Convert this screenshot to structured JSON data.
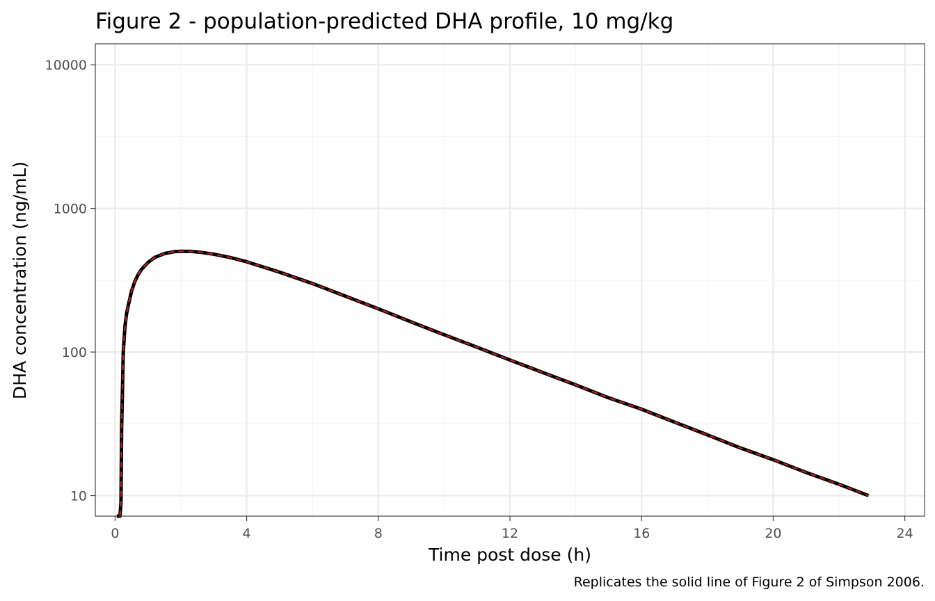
{
  "chart_data": {
    "type": "line",
    "title": "Figure 2 - population-predicted DHA profile, 10 mg/kg",
    "xlabel": "Time post dose (h)",
    "ylabel": "DHA concentration (ng/mL)",
    "caption": "Replicates the solid line of Figure 2 of Simpson 2006.",
    "x_scale": "linear",
    "y_scale": "log10",
    "xlim": [
      -0.6,
      24.6
    ],
    "ylim": [
      7.2,
      14000
    ],
    "x_ticks": [
      0,
      4,
      8,
      12,
      16,
      20,
      24
    ],
    "x_tick_labels": [
      "0",
      "4",
      "8",
      "12",
      "16",
      "20",
      "24"
    ],
    "y_ticks": [
      10,
      100,
      1000,
      10000
    ],
    "y_tick_labels": [
      "10",
      "100",
      "1000",
      "10000"
    ],
    "grid": true,
    "legend": "none",
    "colors": {
      "reference_line": "#000000",
      "model_line": "#b22222",
      "panel_border": "#333333",
      "grid_major": "#ebebeb",
      "grid_minor": "#f3f3f3"
    },
    "series": [
      {
        "style": "solid",
        "color": "#000000",
        "x": [
          0.05,
          0.15,
          0.18,
          0.2,
          0.25,
          0.3,
          0.35,
          0.4,
          0.5,
          0.6,
          0.7,
          0.8,
          1.0,
          1.2,
          1.5,
          1.8,
          2.0,
          2.3,
          2.6,
          3.0,
          3.5,
          4.0,
          5.0,
          6.0,
          7.0,
          8.0,
          9.0,
          10.0,
          11.0,
          12.0,
          13.0,
          14.0,
          15.0,
          16.0,
          17.0,
          18.0,
          19.0,
          20.0,
          21.0,
          22.0,
          22.9
        ],
        "y": [
          7.2,
          7.2,
          9,
          30,
          100,
          150,
          185,
          210,
          265,
          310,
          345,
          375,
          420,
          455,
          485,
          500,
          503,
          502,
          495,
          480,
          455,
          425,
          360,
          300,
          245,
          200,
          162,
          132,
          108,
          88,
          72,
          59,
          48,
          40,
          32.5,
          26.5,
          21.5,
          17.8,
          14.5,
          12,
          10
        ]
      },
      {
        "style": "dashed",
        "color": "#b22222",
        "x": [
          0.15,
          0.18,
          0.2,
          0.25,
          0.3,
          0.35,
          0.4,
          0.5,
          0.6,
          0.7,
          0.8,
          1.0,
          1.2,
          1.5,
          1.8,
          2.0,
          2.3,
          2.6,
          3.0,
          3.5,
          4.0,
          5.0,
          6.0,
          7.0,
          8.0,
          9.0,
          10.0,
          11.0,
          12.0,
          13.0,
          14.0,
          15.0,
          16.0,
          17.0,
          18.0,
          19.0,
          20.0,
          21.0,
          22.0,
          22.9
        ],
        "y": [
          7.2,
          9,
          30,
          100,
          150,
          185,
          210,
          265,
          310,
          345,
          375,
          420,
          455,
          485,
          500,
          503,
          502,
          495,
          480,
          455,
          425,
          360,
          300,
          245,
          200,
          162,
          132,
          108,
          88,
          72,
          59,
          48,
          40,
          32.5,
          26.5,
          21.5,
          17.8,
          14.5,
          12,
          10
        ]
      }
    ]
  }
}
